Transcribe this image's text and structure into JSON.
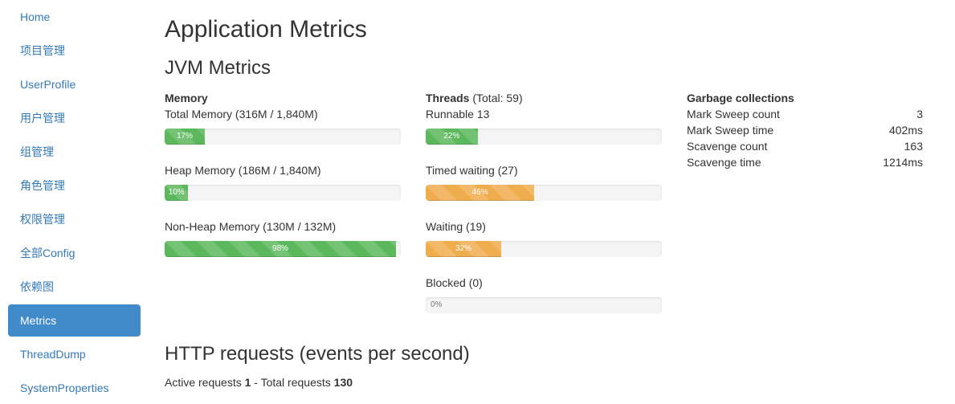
{
  "sidebar": {
    "items": [
      {
        "label": "Home"
      },
      {
        "label": "项目管理"
      },
      {
        "label": "UserProfile"
      },
      {
        "label": "用户管理"
      },
      {
        "label": "组管理"
      },
      {
        "label": "角色管理"
      },
      {
        "label": "权限管理"
      },
      {
        "label": "全部Config"
      },
      {
        "label": "依赖图"
      },
      {
        "label": "Metrics",
        "active": true
      },
      {
        "label": "ThreadDump"
      },
      {
        "label": "SystemProperties"
      }
    ]
  },
  "page_title": "Application Metrics",
  "jvm": {
    "title": "JVM Metrics",
    "memory": {
      "heading": "Memory",
      "total": {
        "label": "Total Memory (316M / 1,840M)",
        "percent": 17,
        "text": "17%"
      },
      "heap": {
        "label": "Heap Memory (186M / 1,840M)",
        "percent": 10,
        "text": "10%"
      },
      "nonheap": {
        "label": "Non-Heap Memory (130M / 132M)",
        "percent": 98,
        "text": "98%"
      }
    },
    "threads": {
      "heading": "Threads",
      "total_text": " (Total: 59)",
      "runnable": {
        "label": "Runnable 13",
        "percent": 22,
        "text": "22%"
      },
      "timed_waiting": {
        "label": "Timed waiting (27)",
        "percent": 46,
        "text": "46%"
      },
      "waiting": {
        "label": "Waiting (19)",
        "percent": 32,
        "text": "32%"
      },
      "blocked": {
        "label": "Blocked (0)",
        "percent": 0,
        "text": "0%"
      }
    },
    "gc": {
      "heading": "Garbage collections",
      "rows": [
        {
          "name": "Mark Sweep count",
          "value": "3"
        },
        {
          "name": "Mark Sweep time",
          "value": "402ms"
        },
        {
          "name": "Scavenge count",
          "value": "163"
        },
        {
          "name": "Scavenge time",
          "value": "1214ms"
        }
      ]
    }
  },
  "http": {
    "title": "HTTP requests (events per second)",
    "active_label": "Active requests ",
    "active_value": "1",
    "total_label": " - Total requests ",
    "total_value": "130"
  },
  "colors": {
    "success": "#5cb85c",
    "warning": "#f0ad4e",
    "nav_active": "#428bca",
    "link": "#337ab7"
  }
}
